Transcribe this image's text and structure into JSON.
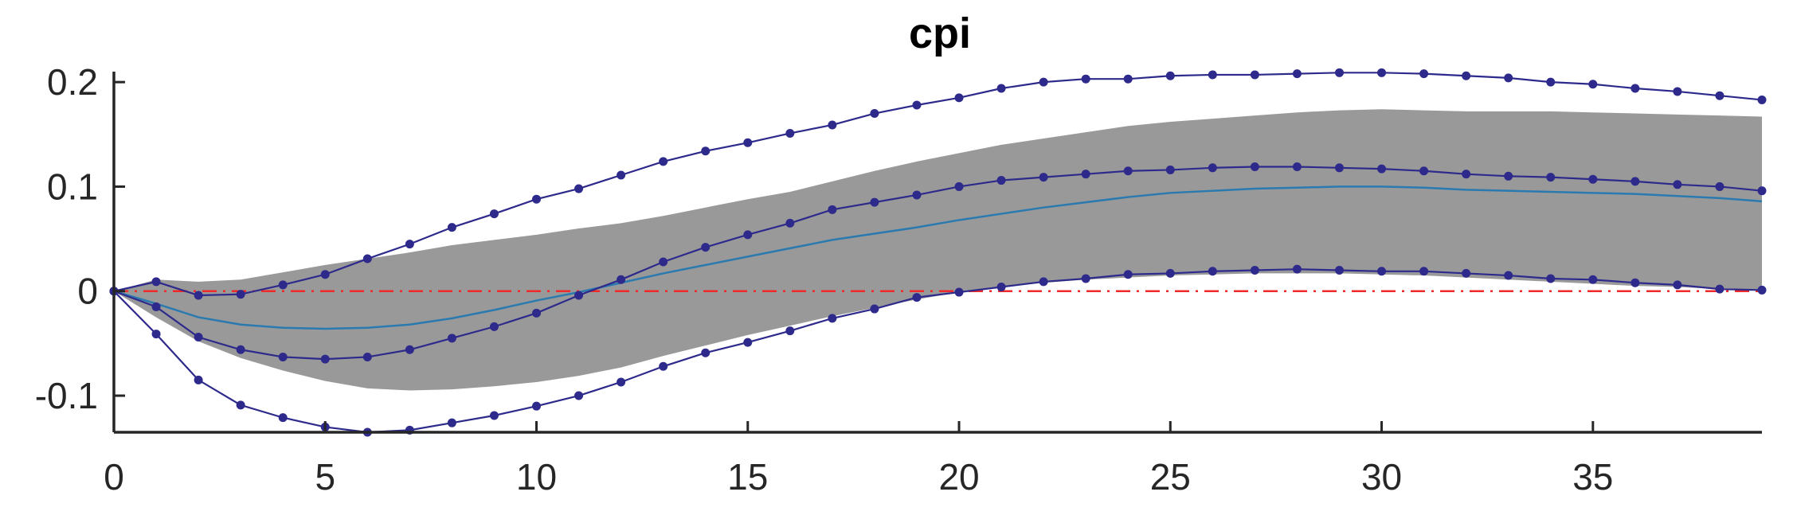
{
  "chart_data": {
    "type": "line",
    "title": "cpi",
    "xlabel": "",
    "ylabel": "",
    "xlim": [
      0,
      39
    ],
    "ylim": [
      -0.135,
      0.21
    ],
    "xticks": [
      0,
      5,
      10,
      15,
      20,
      25,
      30,
      35
    ],
    "yticks": [
      -0.1,
      0,
      0.1,
      0.2
    ],
    "ytick_labels": [
      "-0.1",
      "0",
      "0.1",
      "0.2"
    ],
    "grid": false,
    "colors": {
      "band": "#999999",
      "median": "#2a7ab0",
      "lines": "#2e2a8c",
      "zero_line": "#ee2a2a"
    },
    "x": [
      0,
      1,
      2,
      3,
      4,
      5,
      6,
      7,
      8,
      9,
      10,
      11,
      12,
      13,
      14,
      15,
      16,
      17,
      18,
      19,
      20,
      21,
      22,
      23,
      24,
      25,
      26,
      27,
      28,
      29,
      30,
      31,
      32,
      33,
      34,
      35,
      36,
      37,
      38,
      39
    ],
    "band": {
      "upper": [
        0,
        0.011,
        0.009,
        0.011,
        0.018,
        0.025,
        0.031,
        0.037,
        0.044,
        0.049,
        0.054,
        0.06,
        0.065,
        0.072,
        0.08,
        0.088,
        0.095,
        0.105,
        0.115,
        0.124,
        0.132,
        0.14,
        0.146,
        0.152,
        0.158,
        0.162,
        0.165,
        0.168,
        0.171,
        0.173,
        0.174,
        0.173,
        0.172,
        0.172,
        0.172,
        0.171,
        0.17,
        0.169,
        0.168,
        0.167
      ],
      "lower": [
        0,
        -0.025,
        -0.048,
        -0.064,
        -0.076,
        -0.086,
        -0.093,
        -0.095,
        -0.094,
        -0.091,
        -0.087,
        -0.081,
        -0.073,
        -0.062,
        -0.052,
        -0.042,
        -0.033,
        -0.024,
        -0.016,
        -0.008,
        -0.001,
        0.004,
        0.008,
        0.011,
        0.013,
        0.015,
        0.016,
        0.017,
        0.017,
        0.017,
        0.016,
        0.015,
        0.013,
        0.011,
        0.009,
        0.007,
        0.005,
        0.004,
        0.002,
        0.001
      ]
    },
    "series": [
      {
        "style": "median",
        "values": [
          0,
          -0.012,
          -0.025,
          -0.032,
          -0.035,
          -0.036,
          -0.035,
          -0.032,
          -0.026,
          -0.018,
          -0.009,
          -0.001,
          0.008,
          0.017,
          0.025,
          0.033,
          0.041,
          0.049,
          0.055,
          0.061,
          0.068,
          0.074,
          0.08,
          0.085,
          0.09,
          0.094,
          0.096,
          0.098,
          0.099,
          0.1,
          0.1,
          0.099,
          0.097,
          0.096,
          0.095,
          0.094,
          0.093,
          0.091,
          0.089,
          0.086
        ]
      },
      {
        "style": "markers",
        "values": [
          0,
          0.009,
          -0.004,
          -0.003,
          0.006,
          0.016,
          0.031,
          0.045,
          0.061,
          0.074,
          0.088,
          0.098,
          0.111,
          0.124,
          0.134,
          0.142,
          0.151,
          0.159,
          0.17,
          0.178,
          0.185,
          0.194,
          0.2,
          0.203,
          0.203,
          0.206,
          0.207,
          0.207,
          0.208,
          0.209,
          0.209,
          0.208,
          0.206,
          0.204,
          0.2,
          0.198,
          0.194,
          0.191,
          0.187,
          0.183
        ]
      },
      {
        "style": "markers",
        "values": [
          0,
          -0.015,
          -0.044,
          -0.056,
          -0.063,
          -0.065,
          -0.063,
          -0.056,
          -0.045,
          -0.034,
          -0.021,
          -0.004,
          0.011,
          0.028,
          0.042,
          0.054,
          0.065,
          0.078,
          0.085,
          0.092,
          0.1,
          0.106,
          0.109,
          0.112,
          0.115,
          0.116,
          0.118,
          0.119,
          0.119,
          0.118,
          0.117,
          0.115,
          0.112,
          0.11,
          0.109,
          0.107,
          0.105,
          0.102,
          0.1,
          0.096
        ]
      },
      {
        "style": "markers",
        "values": [
          0,
          -0.041,
          -0.085,
          -0.109,
          -0.121,
          -0.13,
          -0.135,
          -0.133,
          -0.126,
          -0.119,
          -0.11,
          -0.1,
          -0.087,
          -0.072,
          -0.059,
          -0.049,
          -0.038,
          -0.026,
          -0.017,
          -0.006,
          -0.001,
          0.004,
          0.009,
          0.012,
          0.016,
          0.017,
          0.019,
          0.02,
          0.021,
          0.02,
          0.019,
          0.019,
          0.017,
          0.015,
          0.012,
          0.011,
          0.008,
          0.006,
          0.002,
          0.001
        ]
      }
    ],
    "reference_line": {
      "y": 0,
      "style": "dash-dot"
    }
  }
}
